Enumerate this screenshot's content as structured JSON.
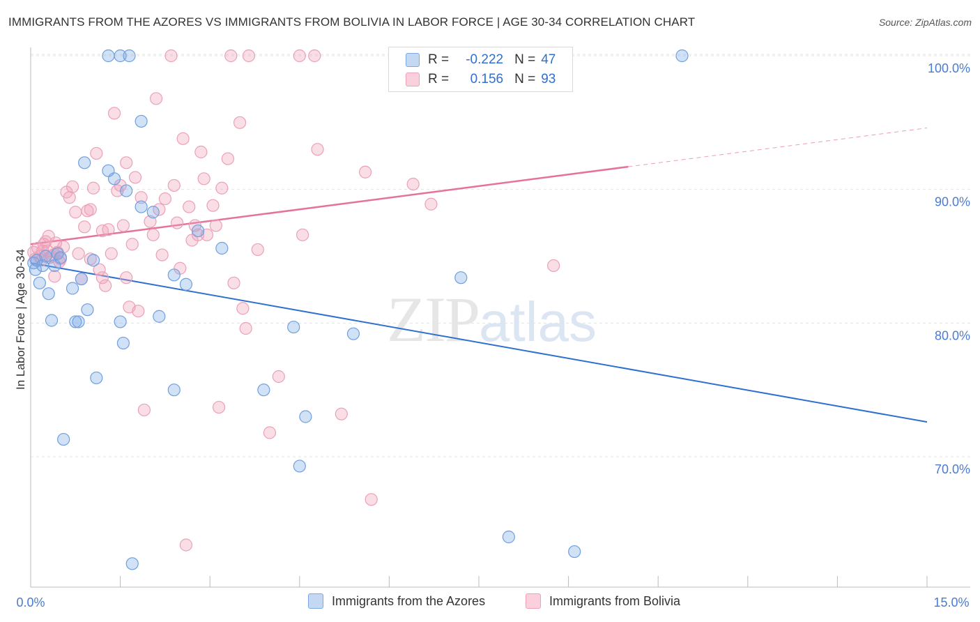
{
  "title": "IMMIGRANTS FROM THE AZORES VS IMMIGRANTS FROM BOLIVIA IN LABOR FORCE | AGE 30-34 CORRELATION CHART",
  "source": "Source: ZipAtlas.com",
  "watermark": {
    "zip": "ZIP",
    "atlas": "atlas"
  },
  "legend": {
    "r_label": "R =",
    "n_label": "N =",
    "series1": {
      "r": "-0.222",
      "n": "47"
    },
    "series2": {
      "r": "0.156",
      "n": "93"
    }
  },
  "colors": {
    "blue": "#7aa8e6",
    "blue_line": "#2f6fd0",
    "pink": "#f0a0b8",
    "pink_line": "#e4729a"
  },
  "chart_data": {
    "type": "scatter",
    "ylabel": "In Labor Force | Age 30-34",
    "xlim": [
      0,
      15
    ],
    "ylim": [
      60,
      101
    ],
    "xtick_labels": [
      "0.0%",
      "15.0%"
    ],
    "ytick_labels": [
      "70.0%",
      "80.0%",
      "90.0%",
      "100.0%"
    ],
    "ytick_values": [
      70,
      80,
      90,
      100
    ],
    "grid": true,
    "series": [
      {
        "name": "Immigrants from the Azores",
        "color": "#7aa8e6",
        "trend": {
          "x": [
            0.0,
            15.0
          ],
          "y": [
            84.5,
            72.6
          ]
        },
        "points": [
          [
            0.05,
            84.5
          ],
          [
            0.08,
            84.0
          ],
          [
            0.1,
            84.7
          ],
          [
            0.15,
            83.0
          ],
          [
            0.2,
            84.3
          ],
          [
            0.25,
            85.0
          ],
          [
            0.3,
            82.2
          ],
          [
            0.35,
            80.2
          ],
          [
            0.4,
            84.3
          ],
          [
            0.45,
            85.2
          ],
          [
            0.5,
            84.9
          ],
          [
            0.55,
            71.3
          ],
          [
            0.7,
            82.6
          ],
          [
            0.75,
            80.1
          ],
          [
            0.8,
            80.1
          ],
          [
            0.85,
            83.3
          ],
          [
            0.9,
            92.0
          ],
          [
            0.95,
            81.0
          ],
          [
            1.05,
            84.7
          ],
          [
            1.1,
            75.9
          ],
          [
            1.3,
            100.0
          ],
          [
            1.3,
            91.4
          ],
          [
            1.4,
            90.8
          ],
          [
            1.5,
            100.0
          ],
          [
            1.5,
            80.1
          ],
          [
            1.55,
            78.5
          ],
          [
            1.6,
            89.9
          ],
          [
            1.65,
            100.0
          ],
          [
            1.85,
            95.1
          ],
          [
            1.85,
            88.7
          ],
          [
            2.05,
            88.3
          ],
          [
            2.15,
            80.5
          ],
          [
            2.4,
            75.0
          ],
          [
            2.4,
            83.6
          ],
          [
            2.6,
            82.9
          ],
          [
            2.8,
            86.9
          ],
          [
            3.2,
            85.6
          ],
          [
            3.9,
            75.0
          ],
          [
            4.4,
            79.7
          ],
          [
            4.6,
            73.0
          ],
          [
            4.5,
            69.3
          ],
          [
            5.4,
            79.2
          ],
          [
            7.2,
            83.4
          ],
          [
            8.0,
            64.0
          ],
          [
            9.1,
            62.9
          ],
          [
            10.9,
            100.0
          ],
          [
            1.7,
            62.0
          ]
        ]
      },
      {
        "name": "Immigrants from Bolivia",
        "color": "#f0a0b8",
        "trend": {
          "x": [
            0.0,
            10.0,
            15.0
          ],
          "y": [
            85.9,
            91.7,
            94.6
          ]
        },
        "points": [
          [
            0.05,
            85.3
          ],
          [
            0.08,
            84.8
          ],
          [
            0.12,
            85.6
          ],
          [
            0.15,
            85.0
          ],
          [
            0.18,
            84.7
          ],
          [
            0.2,
            85.4
          ],
          [
            0.25,
            86.1
          ],
          [
            0.3,
            86.5
          ],
          [
            0.35,
            85.0
          ],
          [
            0.4,
            83.5
          ],
          [
            0.45,
            85.3
          ],
          [
            0.5,
            84.8
          ],
          [
            0.55,
            85.7
          ],
          [
            0.6,
            89.8
          ],
          [
            0.65,
            89.4
          ],
          [
            0.7,
            90.2
          ],
          [
            0.75,
            88.3
          ],
          [
            0.8,
            85.2
          ],
          [
            0.85,
            83.3
          ],
          [
            0.9,
            87.2
          ],
          [
            0.95,
            88.4
          ],
          [
            1.0,
            88.5
          ],
          [
            1.05,
            90.1
          ],
          [
            1.1,
            92.7
          ],
          [
            1.15,
            84.0
          ],
          [
            1.2,
            83.4
          ],
          [
            1.25,
            82.8
          ],
          [
            1.3,
            87.0
          ],
          [
            1.35,
            85.2
          ],
          [
            1.4,
            95.7
          ],
          [
            1.45,
            89.9
          ],
          [
            1.5,
            90.3
          ],
          [
            1.55,
            87.3
          ],
          [
            1.6,
            83.4
          ],
          [
            1.65,
            81.2
          ],
          [
            1.7,
            85.9
          ],
          [
            1.75,
            90.9
          ],
          [
            1.8,
            80.9
          ],
          [
            1.85,
            89.4
          ],
          [
            1.9,
            73.5
          ],
          [
            2.0,
            87.6
          ],
          [
            2.05,
            86.6
          ],
          [
            2.1,
            96.8
          ],
          [
            2.15,
            88.5
          ],
          [
            2.2,
            85.1
          ],
          [
            2.25,
            89.3
          ],
          [
            2.35,
            100.0
          ],
          [
            2.4,
            90.3
          ],
          [
            2.45,
            87.5
          ],
          [
            2.5,
            84.1
          ],
          [
            2.55,
            93.8
          ],
          [
            2.6,
            63.4
          ],
          [
            2.65,
            88.7
          ],
          [
            2.7,
            86.2
          ],
          [
            2.75,
            87.3
          ],
          [
            2.8,
            86.6
          ],
          [
            2.85,
            92.8
          ],
          [
            2.9,
            90.8
          ],
          [
            2.95,
            86.6
          ],
          [
            3.05,
            88.8
          ],
          [
            3.1,
            87.3
          ],
          [
            3.15,
            73.7
          ],
          [
            3.2,
            90.1
          ],
          [
            3.3,
            92.3
          ],
          [
            3.35,
            100.0
          ],
          [
            3.4,
            83.0
          ],
          [
            3.5,
            95.0
          ],
          [
            3.55,
            81.1
          ],
          [
            3.6,
            79.6
          ],
          [
            3.65,
            100.0
          ],
          [
            3.8,
            85.5
          ],
          [
            4.0,
            71.8
          ],
          [
            4.15,
            76.0
          ],
          [
            4.5,
            100.0
          ],
          [
            4.55,
            86.6
          ],
          [
            4.75,
            100.0
          ],
          [
            4.8,
            93.0
          ],
          [
            5.2,
            73.2
          ],
          [
            5.6,
            91.3
          ],
          [
            5.7,
            66.8
          ],
          [
            6.4,
            90.4
          ],
          [
            6.7,
            88.9
          ],
          [
            7.5,
            100.0
          ],
          [
            8.75,
            84.3
          ],
          [
            0.22,
            85.9
          ],
          [
            0.28,
            85.4
          ],
          [
            0.32,
            84.9
          ],
          [
            0.38,
            85.1
          ],
          [
            0.42,
            86.0
          ],
          [
            0.48,
            84.6
          ],
          [
            1.2,
            86.9
          ],
          [
            1.6,
            92.0
          ],
          [
            1.0,
            84.8
          ]
        ]
      }
    ]
  },
  "bottom_legend": {
    "item1": "Immigrants from the Azores",
    "item2": "Immigrants from Bolivia"
  }
}
